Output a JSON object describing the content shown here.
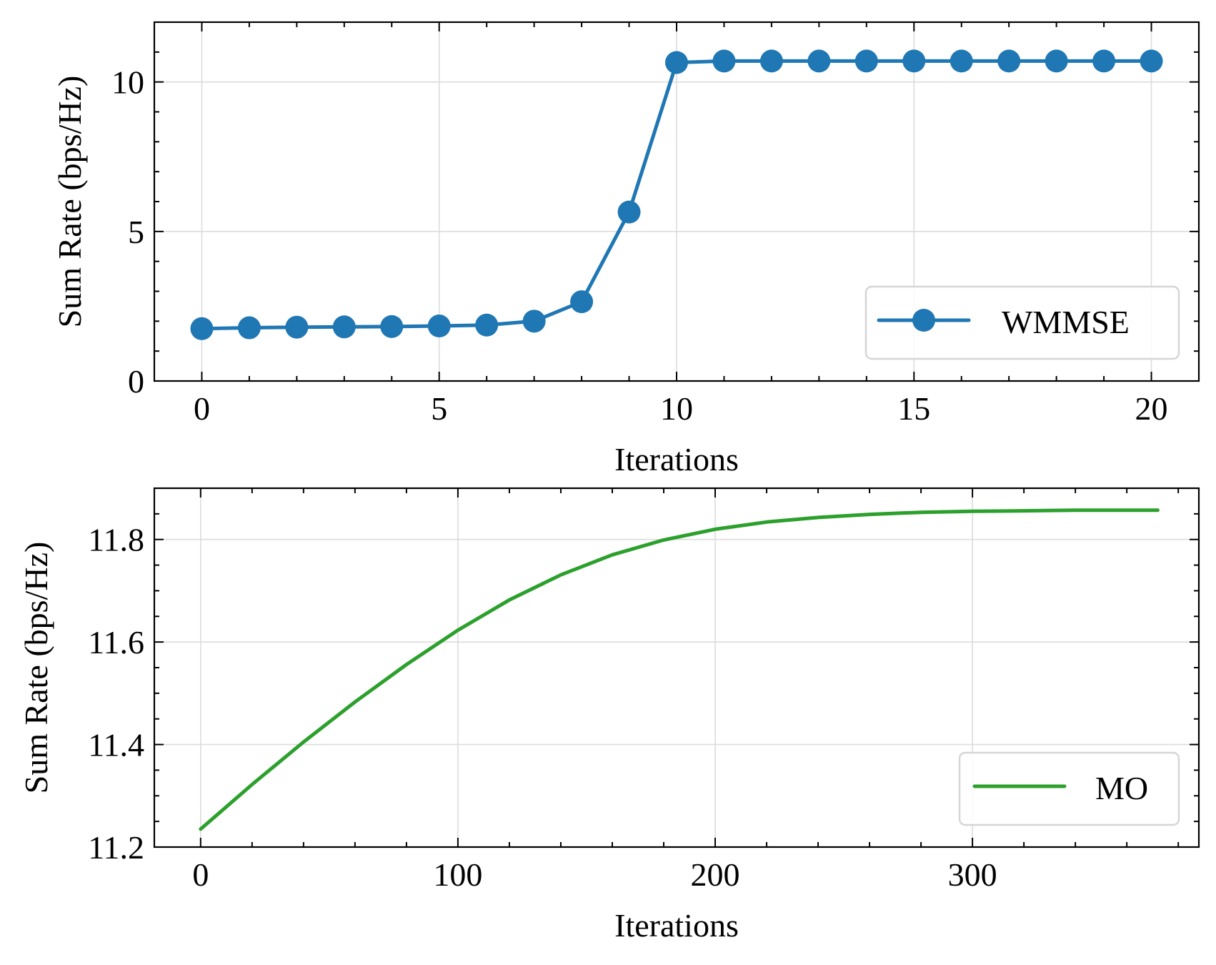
{
  "chart_data": [
    {
      "type": "line",
      "xlabel": "Iterations",
      "ylabel": "Sum Rate (bps/Hz)",
      "xlim": [
        -1,
        21
      ],
      "ylim": [
        0,
        12
      ],
      "xticks": [
        0,
        5,
        10,
        15,
        20
      ],
      "xtick_labels": [
        "0",
        "5",
        "10",
        "15",
        "20"
      ],
      "yticks": [
        0,
        5,
        10
      ],
      "ytick_labels": [
        "0",
        "5",
        "10"
      ],
      "x_minor_step": 1,
      "y_minor_step": 1,
      "grid": true,
      "legend_position": "lower-right",
      "series": [
        {
          "name": "WMMSE",
          "color": "#1f77b4",
          "marker": "circle",
          "x": [
            0,
            1,
            2,
            3,
            4,
            5,
            6,
            7,
            8,
            9,
            10,
            11,
            12,
            13,
            14,
            15,
            16,
            17,
            18,
            19,
            20
          ],
          "y": [
            1.75,
            1.78,
            1.8,
            1.81,
            1.82,
            1.84,
            1.87,
            2.0,
            2.65,
            5.65,
            10.65,
            10.7,
            10.7,
            10.7,
            10.7,
            10.7,
            10.7,
            10.7,
            10.7,
            10.7,
            10.7
          ]
        }
      ]
    },
    {
      "type": "line",
      "xlabel": "Iterations",
      "ylabel": "Sum Rate (bps/Hz)",
      "xlim": [
        -18,
        388
      ],
      "ylim": [
        11.2,
        11.9
      ],
      "xticks": [
        0,
        100,
        200,
        300
      ],
      "xtick_labels": [
        "0",
        "100",
        "200",
        "300"
      ],
      "yticks": [
        11.2,
        11.4,
        11.6,
        11.8
      ],
      "ytick_labels": [
        "11.2",
        "11.4",
        "11.6",
        "11.8"
      ],
      "x_minor_step": 20,
      "y_minor_step": 0.05,
      "grid": true,
      "legend_position": "lower-right",
      "series": [
        {
          "name": "MO",
          "color": "#2ca02c",
          "marker": "none",
          "x": [
            0,
            20,
            40,
            60,
            80,
            100,
            120,
            140,
            160,
            180,
            200,
            220,
            240,
            260,
            280,
            300,
            320,
            340,
            360,
            372
          ],
          "y": [
            11.235,
            11.322,
            11.405,
            11.483,
            11.556,
            11.623,
            11.682,
            11.731,
            11.77,
            11.799,
            11.82,
            11.834,
            11.843,
            11.849,
            11.853,
            11.855,
            11.856,
            11.857,
            11.857,
            11.857
          ]
        }
      ]
    }
  ]
}
